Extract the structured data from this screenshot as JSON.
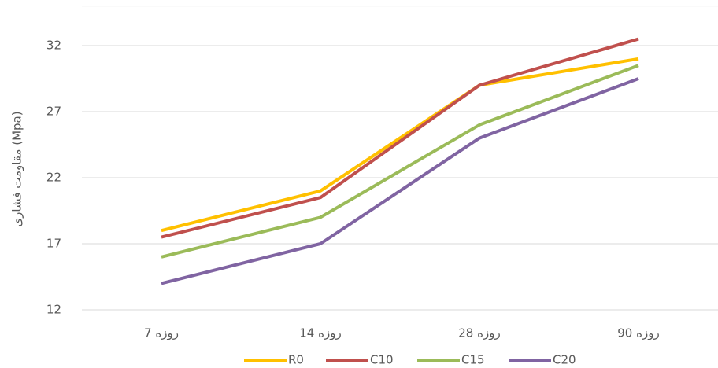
{
  "chart_data": {
    "type": "line",
    "y_label": "مقاومت فشاری (Mpa)",
    "categories": [
      "7 روزه",
      "14 روزه",
      "28 روزه",
      "90 روزه"
    ],
    "series": [
      {
        "name": "R0",
        "color": "#ffc000",
        "values": [
          18,
          21,
          29,
          31
        ]
      },
      {
        "name": "C10",
        "color": "#c0504d",
        "values": [
          17.5,
          20.5,
          29,
          32.5
        ]
      },
      {
        "name": "C15",
        "color": "#9bbb59",
        "values": [
          16,
          19,
          26,
          30.5
        ]
      },
      {
        "name": "C20",
        "color": "#8064a2",
        "values": [
          14,
          17,
          25,
          29.5
        ]
      }
    ],
    "ylim": [
      12,
      35
    ],
    "yticks": [
      12,
      17,
      22,
      27,
      32
    ],
    "grid": true,
    "legend": "bottom"
  }
}
